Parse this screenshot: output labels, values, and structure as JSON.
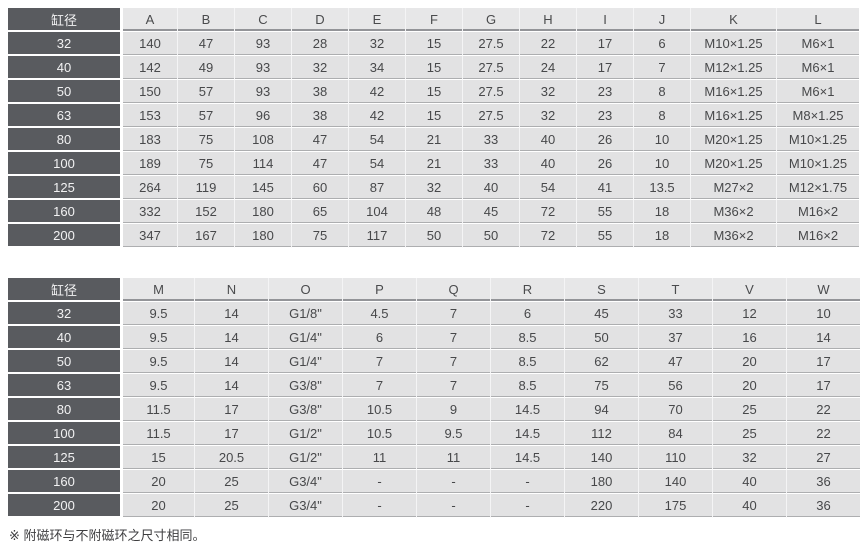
{
  "footnote": "※ 附磁环与不附磁环之尺寸相同。",
  "colors": {
    "header_dark": "#595b5f",
    "cell_bg": "#e2e2e3",
    "letter_header_bg": "#e7e7e8",
    "separator_white": "#ffffff",
    "separator_gray": "#adaeb0"
  },
  "tables": [
    {
      "corner": "缸径",
      "columns": [
        "A",
        "B",
        "C",
        "D",
        "E",
        "F",
        "G",
        "H",
        "I",
        "J",
        "K",
        "L"
      ],
      "rows": [
        {
          "label": "32",
          "values": [
            "140",
            "47",
            "93",
            "28",
            "32",
            "15",
            "27.5",
            "22",
            "17",
            "6",
            "M10×1.25",
            "M6×1"
          ]
        },
        {
          "label": "40",
          "values": [
            "142",
            "49",
            "93",
            "32",
            "34",
            "15",
            "27.5",
            "24",
            "17",
            "7",
            "M12×1.25",
            "M6×1"
          ]
        },
        {
          "label": "50",
          "values": [
            "150",
            "57",
            "93",
            "38",
            "42",
            "15",
            "27.5",
            "32",
            "23",
            "8",
            "M16×1.25",
            "M6×1"
          ]
        },
        {
          "label": "63",
          "values": [
            "153",
            "57",
            "96",
            "38",
            "42",
            "15",
            "27.5",
            "32",
            "23",
            "8",
            "M16×1.25",
            "M8×1.25"
          ]
        },
        {
          "label": "80",
          "values": [
            "183",
            "75",
            "108",
            "47",
            "54",
            "21",
            "33",
            "40",
            "26",
            "10",
            "M20×1.25",
            "M10×1.25"
          ]
        },
        {
          "label": "100",
          "values": [
            "189",
            "75",
            "114",
            "47",
            "54",
            "21",
            "33",
            "40",
            "26",
            "10",
            "M20×1.25",
            "M10×1.25"
          ]
        },
        {
          "label": "125",
          "values": [
            "264",
            "119",
            "145",
            "60",
            "87",
            "32",
            "40",
            "54",
            "41",
            "13.5",
            "M27×2",
            "M12×1.75"
          ]
        },
        {
          "label": "160",
          "values": [
            "332",
            "152",
            "180",
            "65",
            "104",
            "48",
            "45",
            "72",
            "55",
            "18",
            "M36×2",
            "M16×2"
          ]
        },
        {
          "label": "200",
          "values": [
            "347",
            "167",
            "180",
            "75",
            "117",
            "50",
            "50",
            "72",
            "55",
            "18",
            "M36×2",
            "M16×2"
          ]
        }
      ]
    },
    {
      "corner": "缸径",
      "columns": [
        "M",
        "N",
        "O",
        "P",
        "Q",
        "R",
        "S",
        "T",
        "V",
        "W"
      ],
      "rows": [
        {
          "label": "32",
          "values": [
            "9.5",
            "14",
            "G1/8\"",
            "4.5",
            "7",
            "6",
            "45",
            "33",
            "12",
            "10"
          ]
        },
        {
          "label": "40",
          "values": [
            "9.5",
            "14",
            "G1/4\"",
            "6",
            "7",
            "8.5",
            "50",
            "37",
            "16",
            "14"
          ]
        },
        {
          "label": "50",
          "values": [
            "9.5",
            "14",
            "G1/4\"",
            "7",
            "7",
            "8.5",
            "62",
            "47",
            "20",
            "17"
          ]
        },
        {
          "label": "63",
          "values": [
            "9.5",
            "14",
            "G3/8\"",
            "7",
            "7",
            "8.5",
            "75",
            "56",
            "20",
            "17"
          ]
        },
        {
          "label": "80",
          "values": [
            "11.5",
            "17",
            "G3/8\"",
            "10.5",
            "9",
            "14.5",
            "94",
            "70",
            "25",
            "22"
          ]
        },
        {
          "label": "100",
          "values": [
            "11.5",
            "17",
            "G1/2\"",
            "10.5",
            "9.5",
            "14.5",
            "112",
            "84",
            "25",
            "22"
          ]
        },
        {
          "label": "125",
          "values": [
            "15",
            "20.5",
            "G1/2\"",
            "11",
            "11",
            "14.5",
            "140",
            "110",
            "32",
            "27"
          ]
        },
        {
          "label": "160",
          "values": [
            "20",
            "25",
            "G3/4\"",
            "-",
            "-",
            "-",
            "180",
            "140",
            "40",
            "36"
          ]
        },
        {
          "label": "200",
          "values": [
            "20",
            "25",
            "G3/4\"",
            "-",
            "-",
            "-",
            "220",
            "175",
            "40",
            "36"
          ]
        }
      ]
    }
  ]
}
